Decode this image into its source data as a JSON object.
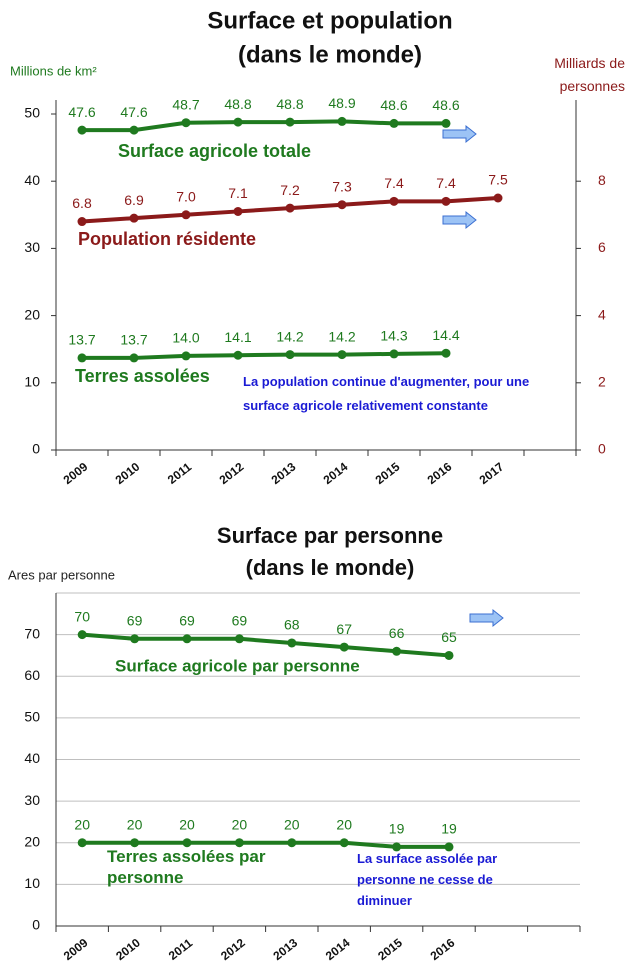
{
  "chart_data": [
    {
      "type": "line",
      "title": "Surface et population",
      "subtitle": "(dans le monde)",
      "ylabel": "Millions de km²",
      "y2label": "Milliards de personnes",
      "categories": [
        "2009",
        "2010",
        "2011",
        "2012",
        "2013",
        "2014",
        "2015",
        "2016",
        "2017",
        null
      ],
      "series": [
        {
          "name": "Surface agricole totale",
          "color": "#1f7a1f",
          "values": [
            47.6,
            47.6,
            48.7,
            48.8,
            48.8,
            48.9,
            48.6,
            48.6,
            null,
            null
          ],
          "value_labels": [
            "47.6",
            "47.6",
            "48.7",
            "48.8",
            "48.8",
            "48.9",
            "48.6",
            "48.6",
            null,
            null
          ]
        },
        {
          "name": "Population résidente",
          "color": "#8b1a1a",
          "axis": "y2",
          "values": [
            6.8,
            6.9,
            7.0,
            7.1,
            7.2,
            7.3,
            7.4,
            7.4,
            7.5,
            null
          ],
          "value_labels": [
            "6.8",
            "6.9",
            "7.0",
            "7.1",
            "7.2",
            "7.3",
            "7.4",
            "7.4",
            "7.5",
            null
          ]
        },
        {
          "name": "Terres assolées",
          "color": "#1f7a1f",
          "values": [
            13.7,
            13.7,
            14.0,
            14.1,
            14.2,
            14.2,
            14.3,
            14.4,
            null,
            null
          ],
          "value_labels": [
            "13.7",
            "13.7",
            "14.0",
            "14.1",
            "14.2",
            "14.2",
            "14.3",
            "14.4",
            null,
            null
          ]
        }
      ],
      "ylim": [
        0,
        50
      ],
      "yticks": [
        0,
        10,
        20,
        30,
        40,
        50
      ],
      "y2lim": [
        0,
        10
      ],
      "y2ticks": [
        0,
        2,
        4,
        6,
        8
      ],
      "grid": false,
      "annotation": "La population continue d'augmenter, pour une surface agricole relativement constante"
    },
    {
      "type": "line",
      "title": "Surface par personne",
      "subtitle": "(dans le monde)",
      "ylabel": "Ares par personne",
      "categories": [
        "2009",
        "2010",
        "2011",
        "2012",
        "2013",
        "2014",
        "2015",
        "2016",
        null,
        null
      ],
      "series": [
        {
          "name": "Surface agricole par personne",
          "color": "#1f7a1f",
          "values": [
            70,
            69,
            69,
            69,
            68,
            67,
            66,
            65,
            null,
            null
          ]
        },
        {
          "name": "Terres assolées par personne",
          "color": "#1f7a1f",
          "values": [
            20,
            20,
            20,
            20,
            20,
            20,
            19,
            19,
            null,
            null
          ]
        }
      ],
      "ylim": [
        0,
        80
      ],
      "yticks": [
        0,
        10,
        20,
        30,
        40,
        50,
        60,
        70
      ],
      "grid": true,
      "annotation": "La surface assolée par personne ne cesse de diminuer"
    }
  ]
}
